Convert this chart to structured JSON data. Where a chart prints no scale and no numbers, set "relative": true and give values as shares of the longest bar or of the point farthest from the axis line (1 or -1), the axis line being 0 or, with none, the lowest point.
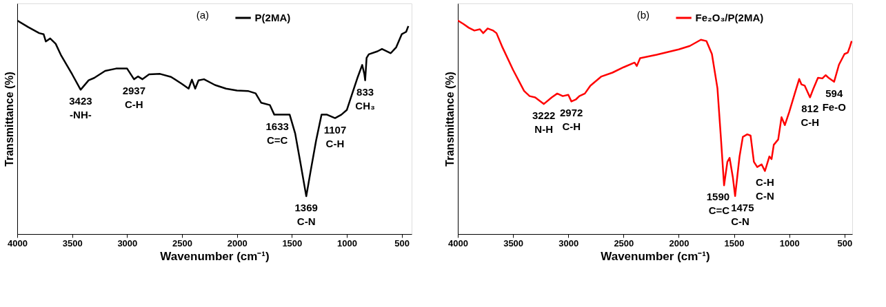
{
  "chart_data": [
    {
      "type": "line",
      "title": "(a)",
      "xlabel": "Wavenumber (cm⁻¹)",
      "ylabel": "Transmittance (%)",
      "relative": true,
      "tick_labels": "x",
      "legend": "top",
      "xlim": [
        4000,
        410
      ],
      "xticks": [
        4000,
        3500,
        3000,
        2500,
        2000,
        1500,
        1000,
        500
      ],
      "x": [
        4000,
        3900,
        3800,
        3760,
        3740,
        3700,
        3650,
        3600,
        3500,
        3423,
        3350,
        3300,
        3200,
        3100,
        3000,
        2937,
        2900,
        2860,
        2800,
        2700,
        2600,
        2500,
        2440,
        2410,
        2380,
        2350,
        2300,
        2200,
        2100,
        2000,
        1900,
        1830,
        1780,
        1700,
        1660,
        1600,
        1520,
        1470,
        1420,
        1369,
        1330,
        1280,
        1230,
        1180,
        1107,
        1050,
        1000,
        950,
        900,
        860,
        840,
        833,
        820,
        800,
        720,
        680,
        600,
        550,
        500,
        460,
        440
      ],
      "series": [
        {
          "name": "P(2MA)",
          "color": "#000000",
          "values": [
            1.0,
            0.969,
            0.941,
            0.936,
            0.902,
            0.916,
            0.891,
            0.836,
            0.748,
            0.676,
            0.72,
            0.731,
            0.764,
            0.775,
            0.775,
            0.725,
            0.738,
            0.725,
            0.748,
            0.75,
            0.736,
            0.703,
            0.681,
            0.723,
            0.681,
            0.72,
            0.725,
            0.698,
            0.681,
            0.672,
            0.67,
            0.659,
            0.615,
            0.604,
            0.559,
            0.559,
            0.559,
            0.471,
            0.327,
            0.177,
            0.293,
            0.437,
            0.559,
            0.559,
            0.543,
            0.559,
            0.581,
            0.659,
            0.736,
            0.792,
            0.748,
            0.72,
            0.825,
            0.842,
            0.856,
            0.867,
            0.847,
            0.875,
            0.936,
            0.947,
            0.974
          ]
        }
      ],
      "annotations": [
        {
          "text": "3423\n-NH-",
          "x": 3423,
          "y": 0.676
        },
        {
          "text": "2937\nC-H",
          "x": 2937,
          "y": 0.725
        },
        {
          "text": "1633\nC=C",
          "x": 1633,
          "y": 0.559
        },
        {
          "text": "1369\nC-N",
          "x": 1369,
          "y": 0.177
        },
        {
          "text": "1107\nC-H",
          "x": 1107,
          "y": 0.543
        },
        {
          "text": "833\nCH₃",
          "x": 833,
          "y": 0.72
        }
      ]
    },
    {
      "type": "line",
      "title": "(b)",
      "xlabel": "Wavenumber (cm⁻¹)",
      "ylabel": "Transmittance (%)",
      "relative": true,
      "tick_labels": "x",
      "legend": "top",
      "xlim": [
        4000,
        430
      ],
      "xticks": [
        4000,
        3500,
        3000,
        2500,
        2000,
        1500,
        1000,
        500
      ],
      "x": [
        4000,
        3950,
        3900,
        3850,
        3800,
        3770,
        3730,
        3680,
        3650,
        3600,
        3500,
        3400,
        3350,
        3300,
        3222,
        3150,
        3100,
        3050,
        3000,
        2972,
        2930,
        2900,
        2850,
        2800,
        2700,
        2600,
        2500,
        2400,
        2380,
        2350,
        2200,
        2000,
        1900,
        1800,
        1750,
        1700,
        1650,
        1620,
        1590,
        1560,
        1540,
        1510,
        1490,
        1450,
        1420,
        1380,
        1350,
        1320,
        1290,
        1250,
        1220,
        1180,
        1160,
        1140,
        1100,
        1070,
        1040,
        1000,
        950,
        910,
        890,
        860,
        812,
        780,
        740,
        700,
        670,
        640,
        594,
        550,
        500,
        470,
        450,
        435
      ],
      "series": [
        {
          "name": "Fe₂O₃/P(2MA)",
          "color": "#ff0000",
          "values": [
            1.0,
            0.984,
            0.966,
            0.953,
            0.959,
            0.941,
            0.963,
            0.953,
            0.941,
            0.879,
            0.769,
            0.67,
            0.646,
            0.64,
            0.609,
            0.64,
            0.658,
            0.646,
            0.652,
            0.621,
            0.631,
            0.646,
            0.658,
            0.695,
            0.738,
            0.756,
            0.781,
            0.803,
            0.787,
            0.824,
            0.84,
            0.865,
            0.881,
            0.91,
            0.904,
            0.843,
            0.683,
            0.461,
            0.228,
            0.338,
            0.357,
            0.264,
            0.178,
            0.363,
            0.455,
            0.467,
            0.461,
            0.338,
            0.314,
            0.326,
            0.295,
            0.363,
            0.351,
            0.418,
            0.443,
            0.547,
            0.51,
            0.572,
            0.658,
            0.726,
            0.701,
            0.695,
            0.64,
            0.683,
            0.732,
            0.729,
            0.744,
            0.73,
            0.713,
            0.793,
            0.843,
            0.85,
            0.879,
            0.904
          ]
        }
      ],
      "annotations": [
        {
          "text": "3222\nN-H",
          "x": 3222,
          "y": 0.609
        },
        {
          "text": "2972\nC-H",
          "x": 2972,
          "y": 0.621
        },
        {
          "text": "1590\nC=C",
          "x": 1590,
          "y": 0.228
        },
        {
          "text": "1475\nC-N",
          "x": 1490,
          "y": 0.178
        },
        {
          "text": "C-H\nC-N",
          "x": 1220,
          "y": 0.295
        },
        {
          "text": "812\nC-H",
          "x": 812,
          "y": 0.64
        },
        {
          "text": "594\nFe-O",
          "x": 594,
          "y": 0.713
        }
      ]
    }
  ]
}
